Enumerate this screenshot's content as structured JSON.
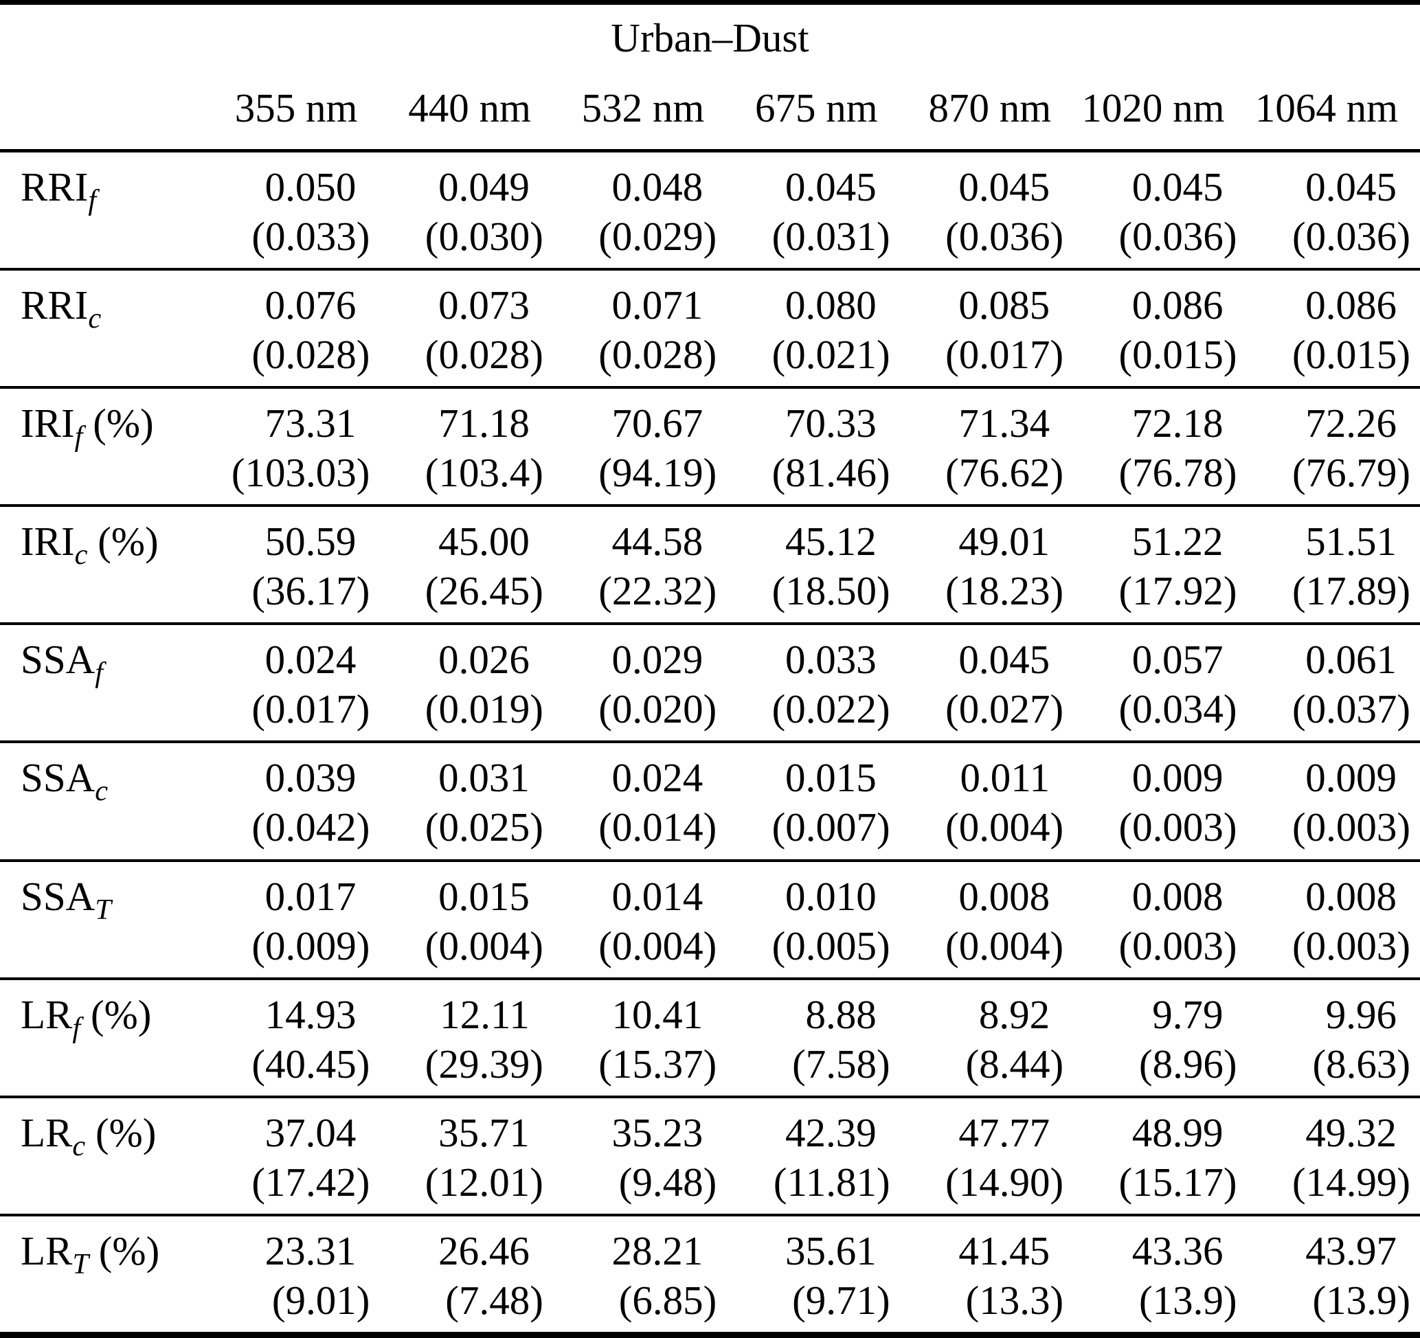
{
  "table": {
    "group_header": "Urban–Dust",
    "columns": [
      "355 nm",
      "440 nm",
      "532 nm",
      "675 nm",
      "870 nm",
      "1020 nm",
      "1064 nm"
    ],
    "rows": [
      {
        "label_base": "RRI",
        "label_sub": "f",
        "label_suffix": "",
        "values": [
          "0.050",
          "0.049",
          "0.048",
          "0.045",
          "0.045",
          "0.045",
          "0.045"
        ],
        "uncertainties": [
          "(0.033)",
          "(0.030)",
          "(0.029)",
          "(0.031)",
          "(0.036)",
          "(0.036)",
          "(0.036)"
        ]
      },
      {
        "label_base": "RRI",
        "label_sub": "c",
        "label_suffix": "",
        "values": [
          "0.076",
          "0.073",
          "0.071",
          "0.080",
          "0.085",
          "0.086",
          "0.086"
        ],
        "uncertainties": [
          "(0.028)",
          "(0.028)",
          "(0.028)",
          "(0.021)",
          "(0.017)",
          "(0.015)",
          "(0.015)"
        ]
      },
      {
        "label_base": "IRI",
        "label_sub": "f",
        "label_suffix": "(%)",
        "values": [
          "73.31",
          "71.18",
          "70.67",
          "70.33",
          "71.34",
          "72.18",
          "72.26"
        ],
        "uncertainties": [
          "(103.03)",
          "(103.4)",
          "(94.19)",
          "(81.46)",
          "(76.62)",
          "(76.78)",
          "(76.79)"
        ]
      },
      {
        "label_base": "IRI",
        "label_sub": "c",
        "label_suffix": "(%)",
        "values": [
          "50.59",
          "45.00",
          "44.58",
          "45.12",
          "49.01",
          "51.22",
          "51.51"
        ],
        "uncertainties": [
          "(36.17)",
          "(26.45)",
          "(22.32)",
          "(18.50)",
          "(18.23)",
          "(17.92)",
          "(17.89)"
        ]
      },
      {
        "label_base": "SSA",
        "label_sub": "f",
        "label_suffix": "",
        "values": [
          "0.024",
          "0.026",
          "0.029",
          "0.033",
          "0.045",
          "0.057",
          "0.061"
        ],
        "uncertainties": [
          "(0.017)",
          "(0.019)",
          "(0.020)",
          "(0.022)",
          "(0.027)",
          "(0.034)",
          "(0.037)"
        ]
      },
      {
        "label_base": "SSA",
        "label_sub": "c",
        "label_suffix": "",
        "values": [
          "0.039",
          "0.031",
          "0.024",
          "0.015",
          "0.011",
          "0.009",
          "0.009"
        ],
        "uncertainties": [
          "(0.042)",
          "(0.025)",
          "(0.014)",
          "(0.007)",
          "(0.004)",
          "(0.003)",
          "(0.003)"
        ]
      },
      {
        "label_base": "SSA",
        "label_sub": "T",
        "label_suffix": "",
        "values": [
          "0.017",
          "0.015",
          "0.014",
          "0.010",
          "0.008",
          "0.008",
          "0.008"
        ],
        "uncertainties": [
          "(0.009)",
          "(0.004)",
          "(0.004)",
          "(0.005)",
          "(0.004)",
          "(0.003)",
          "(0.003)"
        ]
      },
      {
        "label_base": "LR",
        "label_sub": "f",
        "label_suffix": "(%)",
        "values": [
          "14.93",
          "12.11",
          "10.41",
          "8.88",
          "8.92",
          "9.79",
          "9.96"
        ],
        "uncertainties": [
          "(40.45)",
          "(29.39)",
          "(15.37)",
          "(7.58)",
          "(8.44)",
          "(8.96)",
          "(8.63)"
        ]
      },
      {
        "label_base": "LR",
        "label_sub": "c",
        "label_suffix": "(%)",
        "values": [
          "37.04",
          "35.71",
          "35.23",
          "42.39",
          "47.77",
          "48.99",
          "49.32"
        ],
        "uncertainties": [
          "(17.42)",
          "(12.01)",
          "(9.48)",
          "(11.81)",
          "(14.90)",
          "(15.17)",
          "(14.99)"
        ]
      },
      {
        "label_base": "LR",
        "label_sub": "T",
        "label_suffix": "(%)",
        "values": [
          "23.31",
          "26.46",
          "28.21",
          "35.61",
          "41.45",
          "43.36",
          "43.97"
        ],
        "uncertainties": [
          "(9.01)",
          "(7.48)",
          "(6.85)",
          "(9.71)",
          "(13.3)",
          "(13.9)",
          "(13.9)"
        ]
      }
    ]
  }
}
